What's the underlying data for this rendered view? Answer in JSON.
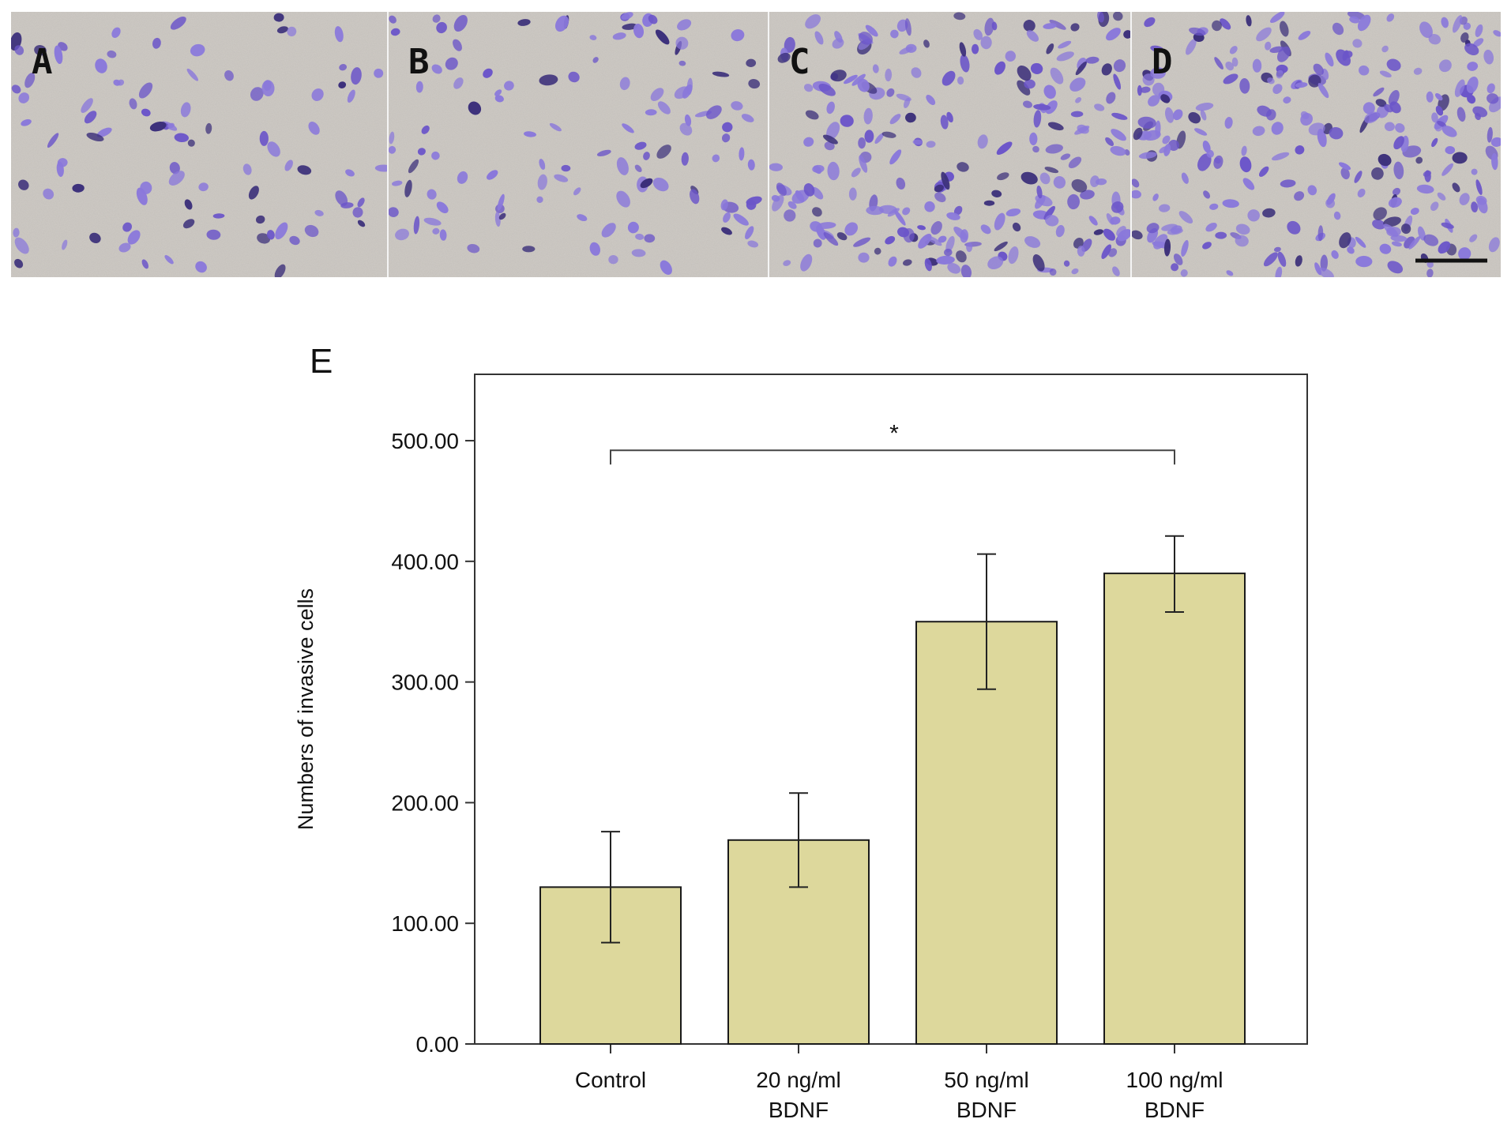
{
  "figure": {
    "panels": [
      {
        "label": "A",
        "cell_count": 95
      },
      {
        "label": "B",
        "cell_count": 120
      },
      {
        "label": "C",
        "cell_count": 240
      },
      {
        "label": "D",
        "cell_count": 265
      }
    ],
    "chart_panel_label": "E",
    "colors": {
      "bar_fill": "#ddd89c",
      "bar_stroke": "#1a1a1a",
      "micrograph_background": "#cfcbc6",
      "cell_stain": "#6b55c9"
    }
  },
  "chart_data": {
    "type": "bar",
    "categories": [
      [
        "Control"
      ],
      [
        "20 ng/ml",
        "BDNF"
      ],
      [
        "50 ng/ml",
        "BDNF"
      ],
      [
        "100 ng/ml",
        "BDNF"
      ]
    ],
    "values": [
      130,
      169,
      350,
      390
    ],
    "error_low": [
      84,
      130,
      294,
      358
    ],
    "error_high": [
      176,
      208,
      406,
      421
    ],
    "ylabel": "Numbers of invasive cells",
    "xlabel": "",
    "ylim": [
      0,
      555
    ],
    "yticks": [
      0,
      100,
      200,
      300,
      400,
      500
    ],
    "ytick_labels": [
      "0.00",
      "100.00",
      "200.00",
      "300.00",
      "400.00",
      "500.00"
    ],
    "significance": {
      "from_category": 0,
      "to_category": 3,
      "y": 492,
      "label": "*"
    },
    "grid": false,
    "legend": false
  }
}
